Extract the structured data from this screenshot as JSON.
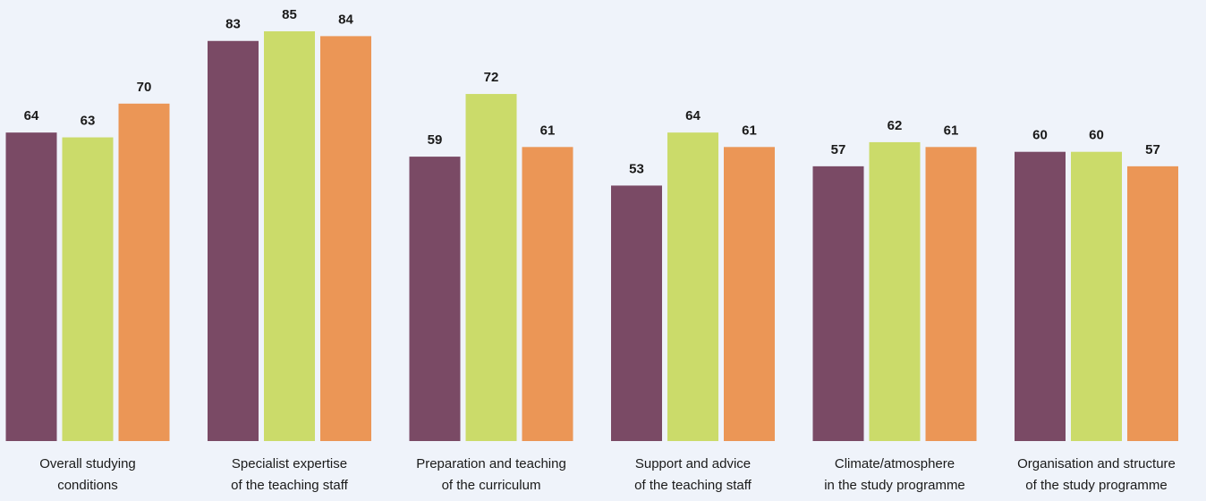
{
  "chart_data": {
    "type": "bar",
    "categories": [
      [
        "Overall studying",
        "conditions"
      ],
      [
        "Specialist expertise",
        "of the teaching staff"
      ],
      [
        "Preparation and teaching",
        "of the curriculum"
      ],
      [
        "Support and advice",
        "of the teaching staff"
      ],
      [
        "Climate/atmosphere",
        "in the study programme"
      ],
      [
        "Organisation and structure",
        "of the study programme"
      ]
    ],
    "series": [
      {
        "color": "#7a4a65",
        "values": [
          64,
          83,
          59,
          53,
          57,
          60
        ]
      },
      {
        "color": "#cbdb6a",
        "values": [
          63,
          85,
          72,
          64,
          62,
          60
        ]
      },
      {
        "color": "#eb9656",
        "values": [
          70,
          84,
          61,
          61,
          61,
          57
        ]
      }
    ],
    "ylim": [
      0,
      85
    ]
  }
}
